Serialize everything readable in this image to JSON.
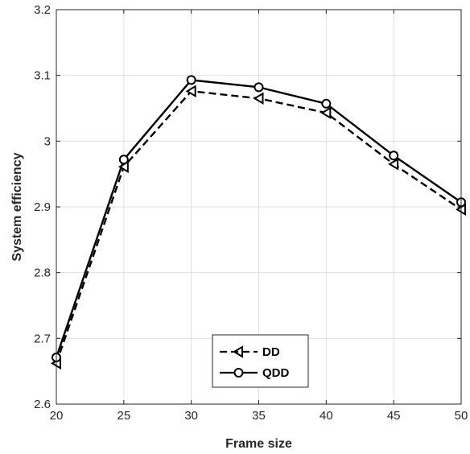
{
  "chart_data": {
    "type": "line",
    "title": "",
    "xlabel": "Frame size",
    "ylabel": "System efficiency",
    "xlim": [
      20,
      50
    ],
    "ylim": [
      2.6,
      3.2
    ],
    "xticks": [
      20,
      25,
      30,
      35,
      40,
      45,
      50
    ],
    "xtick_labels": [
      "20",
      "25",
      "30",
      "35",
      "40",
      "45",
      "50"
    ],
    "yticks": [
      2.6,
      2.7,
      2.8,
      2.9,
      3.0,
      3.1,
      3.2
    ],
    "ytick_labels": [
      "2.6",
      "2.7",
      "2.8",
      "2.9",
      "3",
      "3.1",
      "3.2"
    ],
    "grid": true,
    "legend_position": "bottom-center",
    "x": [
      20,
      25,
      30,
      35,
      40,
      45,
      50
    ],
    "series": [
      {
        "name": "DD",
        "values": [
          2.662,
          2.961,
          3.076,
          3.065,
          3.043,
          2.965,
          2.896
        ],
        "line_style": "dashed",
        "marker": "triangle-left",
        "color": "#000000"
      },
      {
        "name": "QDD",
        "values": [
          2.671,
          2.972,
          3.093,
          3.082,
          3.057,
          2.978,
          2.907
        ],
        "line_style": "solid",
        "marker": "circle",
        "color": "#000000"
      }
    ]
  }
}
